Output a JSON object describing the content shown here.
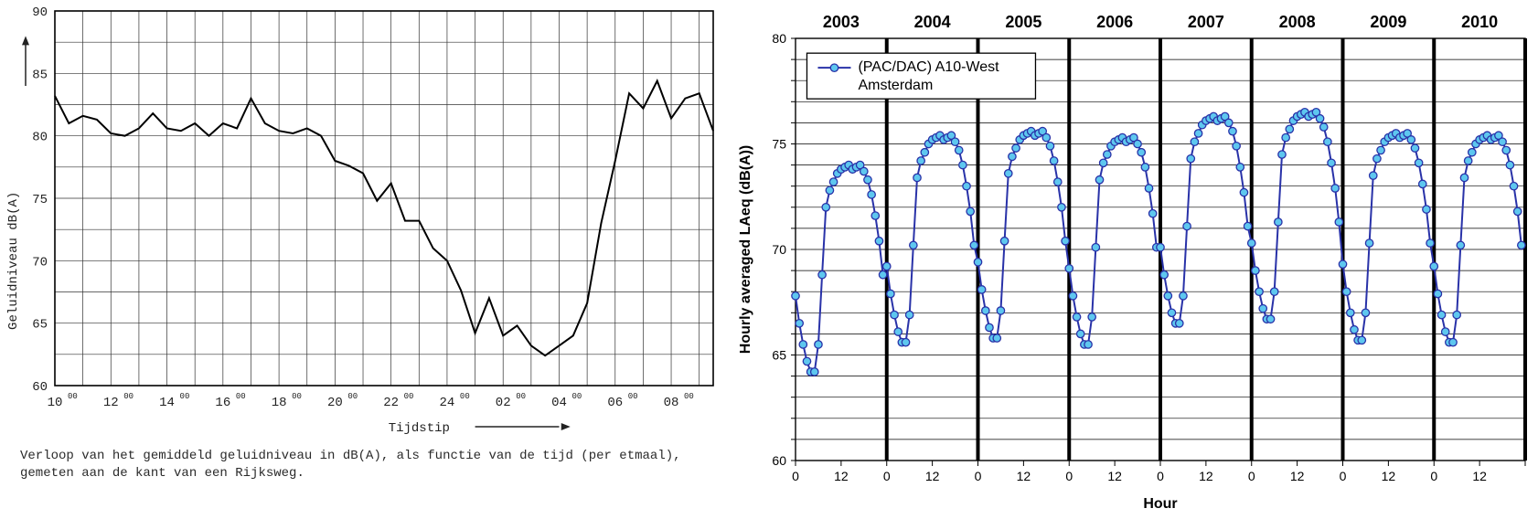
{
  "left_chart": {
    "type": "line",
    "ylabel": "Geluidniveau  dB(A)",
    "ylabel_font": "Courier New",
    "ylabel_fontsize": 14,
    "xlabel": "Tijdstip",
    "xlabel_font": "Courier New",
    "xlabel_fontsize": 14,
    "axis_arrow": true,
    "background_color": "#ffffff",
    "grid_color": "#333333",
    "grid_line_width": 0.7,
    "frame_color": "#000000",
    "frame_line_width": 1.6,
    "line_color": "#000000",
    "line_width": 2.0,
    "xlim": [
      10,
      33.5
    ],
    "ylim": [
      60,
      90
    ],
    "xtick_step": 1,
    "ytick_step": 2.5,
    "x_major_labels_at": [
      10,
      12,
      14,
      16,
      18,
      20,
      22,
      24,
      26,
      28,
      30,
      32
    ],
    "x_label_style": "hour_superscript_00",
    "x_label_text": [
      "10⁰⁰",
      "12⁰⁰",
      "14⁰⁰",
      "16⁰⁰",
      "18⁰⁰",
      "20⁰⁰",
      "22⁰⁰",
      "24⁰⁰",
      "02⁰⁰",
      "04⁰⁰",
      "06⁰⁰",
      "08⁰⁰"
    ],
    "y_major_labels_at": [
      60,
      65,
      70,
      75,
      80,
      85,
      90
    ],
    "data": [
      [
        10.0,
        83.2
      ],
      [
        10.5,
        81.0
      ],
      [
        11.0,
        81.6
      ],
      [
        11.5,
        81.3
      ],
      [
        12.0,
        80.2
      ],
      [
        12.5,
        80.0
      ],
      [
        13.0,
        80.6
      ],
      [
        13.5,
        81.8
      ],
      [
        14.0,
        80.6
      ],
      [
        14.5,
        80.4
      ],
      [
        15.0,
        81.0
      ],
      [
        15.5,
        80.0
      ],
      [
        16.0,
        81.0
      ],
      [
        16.5,
        80.6
      ],
      [
        17.0,
        83.0
      ],
      [
        17.5,
        81.0
      ],
      [
        18.0,
        80.4
      ],
      [
        18.5,
        80.2
      ],
      [
        19.0,
        80.6
      ],
      [
        19.5,
        80.0
      ],
      [
        20.0,
        78.0
      ],
      [
        20.5,
        77.6
      ],
      [
        21.0,
        77.0
      ],
      [
        21.5,
        74.8
      ],
      [
        22.0,
        76.2
      ],
      [
        22.5,
        73.2
      ],
      [
        23.0,
        73.2
      ],
      [
        23.5,
        71.0
      ],
      [
        24.0,
        70.0
      ],
      [
        24.5,
        67.6
      ],
      [
        25.0,
        64.2
      ],
      [
        25.5,
        67.0
      ],
      [
        26.0,
        64.0
      ],
      [
        26.5,
        64.8
      ],
      [
        27.0,
        63.2
      ],
      [
        27.5,
        62.4
      ],
      [
        28.0,
        63.2
      ],
      [
        28.5,
        64.0
      ],
      [
        29.0,
        66.6
      ],
      [
        29.5,
        73.0
      ],
      [
        30.0,
        78.0
      ],
      [
        30.5,
        83.4
      ],
      [
        31.0,
        82.2
      ],
      [
        31.5,
        84.4
      ],
      [
        32.0,
        81.4
      ],
      [
        32.5,
        83.0
      ],
      [
        33.0,
        83.4
      ],
      [
        33.5,
        80.4
      ]
    ],
    "caption": "Verloop van het gemiddeld geluidniveau in dB(A), als functie van de tijd (per etmaal), gemeten aan de kant van een Rijksweg.",
    "caption_fontsize": 14
  },
  "right_chart": {
    "type": "line-marker",
    "ylabel": "Hourly averaged LAeq (dB(A))",
    "ylabel_fontsize": 16,
    "ylabel_weight": "bold",
    "xlabel": "Hour",
    "xlabel_fontsize": 16,
    "xlabel_weight": "bold",
    "background_color": "#ffffff",
    "grid_color": "#000000",
    "grid_line_width": 0.7,
    "frame_color": "#000000",
    "frame_line_width": 1.4,
    "line_color": "#2932a8",
    "line_width": 2.0,
    "marker_shape": "circle",
    "marker_fill": "#5ec7ef",
    "marker_stroke": "#2932a8",
    "marker_stroke_width": 1.3,
    "marker_radius": 4.2,
    "xlim": [
      0,
      192
    ],
    "ylim": [
      60,
      80
    ],
    "ytick_step": 1,
    "y_major_labels_at": [
      60,
      65,
      70,
      75,
      80
    ],
    "xtick_step": 12,
    "x_label_text": [
      "0",
      "12",
      "0",
      "12",
      "0",
      "12",
      "0",
      "12",
      "0",
      "12",
      "0",
      "12",
      "0",
      "12",
      "0",
      "12"
    ],
    "year_labels": [
      "2003",
      "2004",
      "2005",
      "2006",
      "2007",
      "2008",
      "2009",
      "2010"
    ],
    "year_label_fontsize": 18,
    "year_label_weight": "bold",
    "year_separators_at": [
      24,
      48,
      72,
      96,
      120,
      144,
      168,
      192
    ],
    "year_separator_color": "#000000",
    "year_separator_width": 4,
    "legend": {
      "position": "top-left",
      "border_color": "#000000",
      "bg_color": "#ffffff",
      "text": "(PAC/DAC) A10-West Amsterdam",
      "fontsize": 16
    },
    "base_cycle_x": [
      0,
      1,
      2,
      3,
      4,
      5,
      6,
      7,
      8,
      9,
      10,
      11,
      12,
      13,
      14,
      15,
      16,
      17,
      18,
      19,
      20,
      21,
      22,
      23
    ],
    "base_cycle_y": [
      67.8,
      66.5,
      65.5,
      64.7,
      64.2,
      64.2,
      65.5,
      68.8,
      72.0,
      72.8,
      73.2,
      73.6,
      73.8,
      73.9,
      74.0,
      73.8,
      73.9,
      74.0,
      73.7,
      73.3,
      72.6,
      71.6,
      70.4,
      68.8
    ],
    "year_offsets": [
      0.0,
      1.4,
      1.6,
      1.3,
      2.3,
      2.5,
      1.5,
      1.4
    ]
  }
}
